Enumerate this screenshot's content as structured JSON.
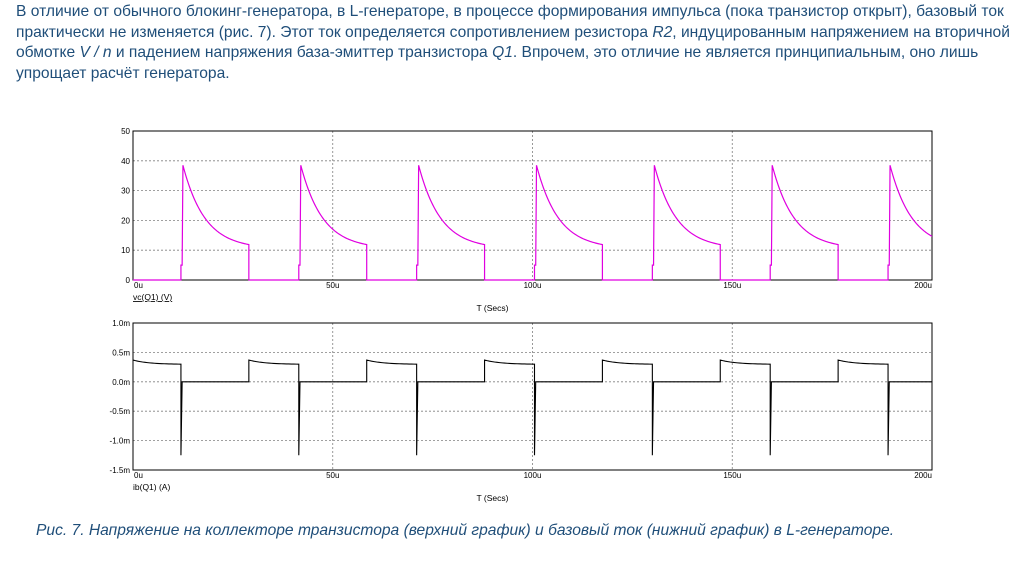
{
  "text": {
    "p1": "В отличие от обычного блокинг-генератора, в L-генераторе, в процессе формирования импульса (пока транзистор открыт), базовый ток практически не изменяется (рис. 7). Этот ток определяется сопротивлением резистора ",
    "r2": "R2",
    "p2": ", индуцированным напряжением на вторичной обмотке ",
    "vn": "V / n",
    "p3": " и падением напряжения база-эмиттер транзистора ",
    "q1": "Q1",
    "p4": ". Впрочем, это отличие не является принципиальным, оно лишь упрощает расчёт генератора."
  },
  "caption": "Рис. 7. Напряжение на коллекторе транзистора (верхний график) и базовый ток (нижний график) в L-генераторе.",
  "colors": {
    "text": "#1f4e79",
    "trace_top": "#e000e0",
    "trace_bottom": "#000000",
    "grid": "#808080"
  },
  "chart_data": [
    {
      "type": "line",
      "xlabel": "T (Secs)",
      "series_label": "vc(Q1) (V)",
      "xlim": [
        0,
        200
      ],
      "ylim": [
        0,
        50
      ],
      "x_ticks": [
        "0u",
        "50u",
        "100u",
        "150u",
        "200u"
      ],
      "y_ticks": [
        "0",
        "10",
        "20",
        "30",
        "40",
        "50"
      ],
      "grid": true,
      "period_us": 29.5,
      "series": [
        {
          "pulse_starts_us": [
            12,
            41.5,
            71,
            100.5,
            130,
            159.5,
            189
          ],
          "pulse_ends_us": [
            29,
            58.5,
            88,
            117.5,
            147,
            176.5
          ],
          "pre_peak_v": 5,
          "peak_v": 38.5,
          "end_v": 10.5,
          "low_v": 0
        }
      ]
    },
    {
      "type": "line",
      "xlabel": "T (Secs)",
      "series_label": "ib(Q1) (A)",
      "xlim": [
        0,
        200
      ],
      "ylim": [
        -1.5,
        1.0
      ],
      "x_ticks": [
        "0u",
        "50u",
        "100u",
        "150u",
        "200u"
      ],
      "y_ticks": [
        "1.0m",
        "0.5m",
        "0.0m",
        "-0.5m",
        "-1.0m",
        "-1.5m"
      ],
      "grid": true,
      "series": [
        {
          "unit": "mA",
          "high_start_us": [
            0,
            29,
            58.5,
            88,
            117.5,
            147,
            176.5
          ],
          "high_end_us": [
            12,
            41.5,
            71,
            100.5,
            130,
            159.5,
            189
          ],
          "high_start_ma": 0.37,
          "high_end_ma": 0.3,
          "spike_ma": -1.25,
          "baseline_ma": 0
        }
      ]
    }
  ]
}
